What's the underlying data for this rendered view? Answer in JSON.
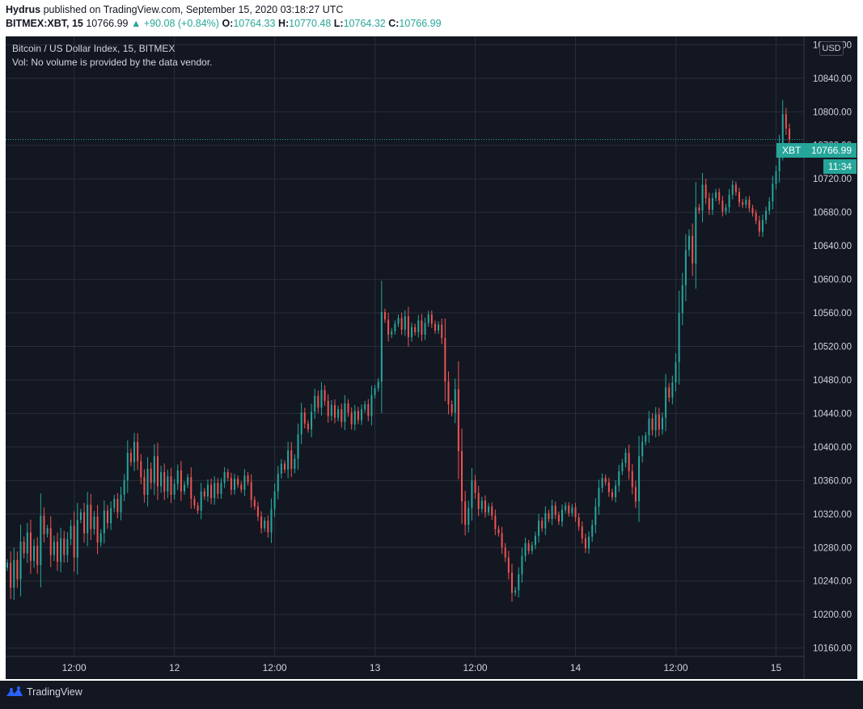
{
  "header": {
    "author": "Hydrus",
    "published_text": "published on TradingView.com, September 15, 2020 03:18:27 UTC",
    "symbol": "BITMEX:XBT, 15",
    "last": "10766.99",
    "change": "+90.08 (+0.84%)",
    "o_label": "O:",
    "o_value": "10764.33",
    "h_label": "H:",
    "h_value": "10770.48",
    "l_label": "L:",
    "l_value": "10764.32",
    "c_label": "C:",
    "c_value": "10766.99"
  },
  "legend": {
    "title": "Bitcoin / US Dollar Index, 15, BITMEX",
    "volume_note": "Vol: No volume is provided by the data vendor."
  },
  "currency_label": "USD",
  "price_tag": {
    "symbol": "XBT",
    "value": "10766.99",
    "timer": "11:34"
  },
  "footer": {
    "brand": "TradingView"
  },
  "colors": {
    "up": "#26a69a",
    "down": "#ef5350",
    "background": "#131722",
    "grid": "#2a2e39",
    "text": "#d1d4dc"
  },
  "chart_data": {
    "type": "candlestick",
    "title": "Bitcoin / US Dollar Index, 15, BITMEX",
    "ylabel": "USD",
    "ylim": [
      10150,
      10890
    ],
    "y_ticks": [
      "10880.00",
      "10840.00",
      "10800.00",
      "10760.00",
      "10720.00",
      "10680.00",
      "10640.00",
      "10600.00",
      "10560.00",
      "10520.00",
      "10480.00",
      "10440.00",
      "10400.00",
      "10360.00",
      "10320.00",
      "10280.00",
      "10240.00",
      "10200.00",
      "10160.00"
    ],
    "x_ticks": [
      "12:00",
      "12",
      "12:00",
      "13",
      "12:00",
      "14",
      "12:00",
      "15"
    ],
    "x_tick_index": [
      20,
      50,
      80,
      110,
      140,
      170,
      200,
      230
    ],
    "last_price": 10766.99,
    "closes": [
      10262,
      10232,
      10265,
      10242,
      10287,
      10273,
      10298,
      10264,
      10282,
      10259,
      10318,
      10296,
      10303,
      10271,
      10287,
      10263,
      10291,
      10271,
      10290,
      10306,
      10268,
      10313,
      10322,
      10297,
      10331,
      10302,
      10317,
      10286,
      10297,
      10324,
      10309,
      10327,
      10338,
      10322,
      10343,
      10360,
      10393,
      10382,
      10406,
      10383,
      10364,
      10343,
      10374,
      10357,
      10389,
      10353,
      10370,
      10347,
      10365,
      10343,
      10356,
      10372,
      10347,
      10355,
      10364,
      10338,
      10330,
      10324,
      10347,
      10341,
      10355,
      10339,
      10357,
      10344,
      10357,
      10370,
      10363,
      10349,
      10362,
      10355,
      10349,
      10366,
      10358,
      10337,
      10329,
      10317,
      10303,
      10312,
      10298,
      10326,
      10347,
      10368,
      10380,
      10373,
      10396,
      10374,
      10386,
      10415,
      10441,
      10428,
      10421,
      10442,
      10461,
      10447,
      10468,
      10455,
      10437,
      10450,
      10435,
      10445,
      10430,
      10452,
      10441,
      10427,
      10443,
      10432,
      10445,
      10451,
      10437,
      10462,
      10470,
      10478,
      10561,
      10552,
      10534,
      10538,
      10547,
      10554,
      10540,
      10556,
      10531,
      10543,
      10537,
      10551,
      10534,
      10548,
      10558,
      10547,
      10539,
      10546,
      10530,
      10478,
      10451,
      10441,
      10469,
      10395,
      10335,
      10307,
      10327,
      10360,
      10345,
      10326,
      10336,
      10322,
      10329,
      10318,
      10302,
      10297,
      10280,
      10268,
      10250,
      10226,
      10229,
      10248,
      10270,
      10285,
      10276,
      10283,
      10294,
      10312,
      10303,
      10321,
      10314,
      10330,
      10319,
      10311,
      10325,
      10330,
      10321,
      10328,
      10316,
      10305,
      10291,
      10279,
      10293,
      10307,
      10329,
      10351,
      10363,
      10358,
      10346,
      10340,
      10354,
      10371,
      10381,
      10393,
      10371,
      10352,
      10335,
      10389,
      10406,
      10414,
      10434,
      10420,
      10439,
      10421,
      10435,
      10471,
      10459,
      10477,
      10501,
      10560,
      10593,
      10635,
      10652,
      10619,
      10686,
      10682,
      10713,
      10697,
      10683,
      10697,
      10704,
      10694,
      10681,
      10686,
      10701,
      10713,
      10704,
      10692,
      10689,
      10695,
      10685,
      10679,
      10670,
      10657,
      10671,
      10682,
      10693,
      10714,
      10729,
      10759,
      10797,
      10780,
      10766.99
    ]
  }
}
